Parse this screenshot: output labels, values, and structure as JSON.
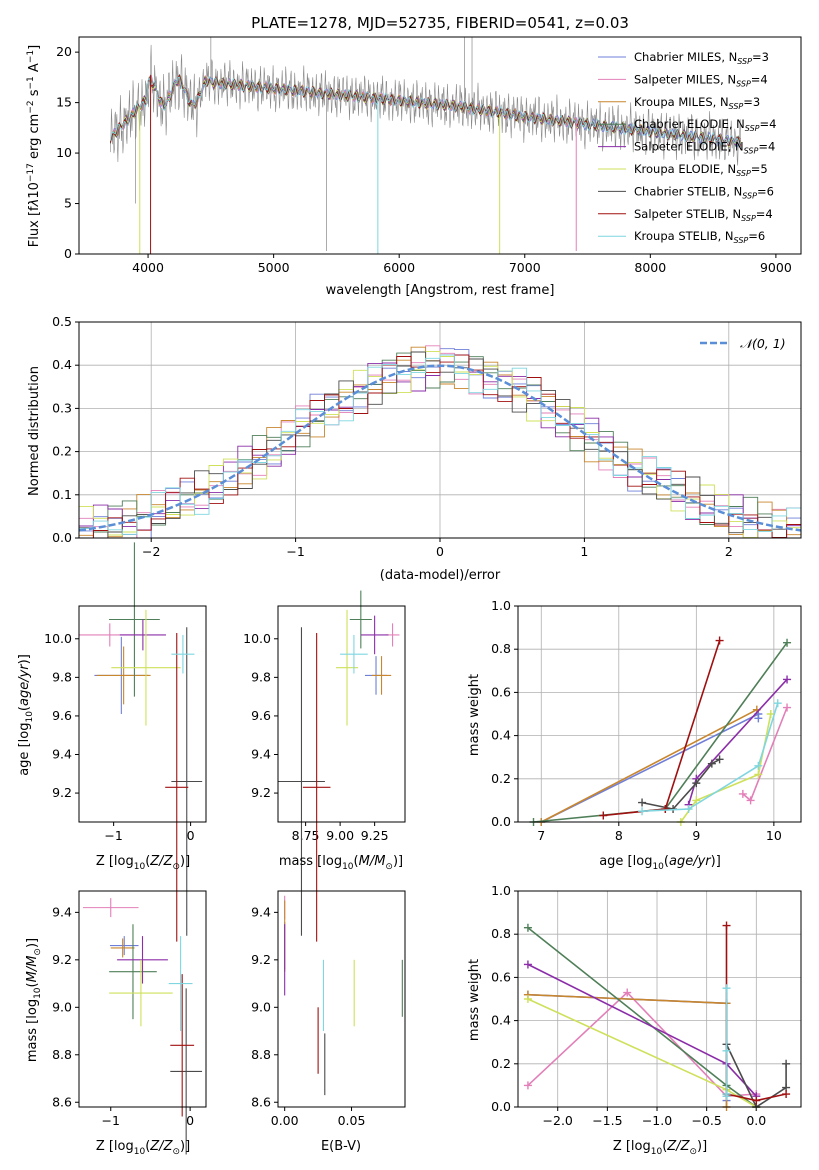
{
  "colors": {
    "Chabrier MILES": "#6f7fd8",
    "Salpeter MILES": "#e27fb8",
    "Kroupa MILES": "#c8862e",
    "Chabrier ELODIE": "#4f7f58",
    "Salpeter ELODIE": "#8b2ea8",
    "Kroupa ELODIE": "#cfe05a",
    "Chabrier STELIB": "#4b4b4b",
    "Salpeter STELIB": "#a01010",
    "Kroupa STELIB": "#7fd6e0",
    "gauss": "#5a8fd8",
    "data": "#888888"
  },
  "chart_data": [
    {
      "type": "line",
      "title": "PLATE=1278, MJD=52735, FIBERID=0541, z=0.03",
      "xlabel": "wavelength [Angstrom, rest frame]",
      "ylabel": "Flux [fλ10⁻¹⁷ erg cm⁻² s⁻¹ A⁻¹]",
      "xlim": [
        3450,
        9200
      ],
      "ylim": [
        0,
        21.5
      ],
      "xticks": [
        "4000",
        "5000",
        "6000",
        "7000",
        "8000",
        "9000"
      ],
      "yticks": [
        "0",
        "5",
        "10",
        "15",
        "20"
      ],
      "legend": [
        "Chabrier MILES, N_SSP=3",
        "Salpeter MILES, N_SSP=4",
        "Kroupa MILES, N_SSP=3",
        "Chabrier ELODIE, N_SSP=4",
        "Salpeter ELODIE, N_SSP=4",
        "Kroupa ELODIE, N_SSP=5",
        "Chabrier STELIB, N_SSP=6",
        "Salpeter STELIB, N_SSP=4",
        "Kroupa STELIB, N_SSP=6"
      ],
      "legend_loc": "upper right",
      "grid": false
    },
    {
      "type": "line",
      "xlabel": "(data-model)/error",
      "ylabel": "Normed distribution",
      "xlim": [
        -2.5,
        2.5
      ],
      "ylim": [
        0,
        0.5
      ],
      "xticks": [
        "−2",
        "−1",
        "0",
        "1",
        "2"
      ],
      "yticks": [
        "0.0",
        "0.1",
        "0.2",
        "0.3",
        "0.4",
        "0.5"
      ],
      "legend": [
        "𝒩(0, 1)"
      ],
      "grid": true
    },
    {
      "type": "scatter",
      "xlabel": "Z [log₁₀(Z/Z⊙)]",
      "ylabel": "age  [log₁₀(age/yr)]",
      "xlim": [
        -1.45,
        0.2
      ],
      "ylim": [
        9.05,
        10.17
      ],
      "xticks": [
        "−1",
        "0"
      ],
      "yticks": [
        "9.2",
        "9.4",
        "9.6",
        "9.8",
        "10.0"
      ],
      "points": [
        {
          "model": "Chabrier MILES",
          "x": -0.9,
          "y": 9.81,
          "xerr": 0.35,
          "yerr": 0.2
        },
        {
          "model": "Salpeter MILES",
          "x": -1.05,
          "y": 10.02,
          "xerr": 0.4,
          "yerr": 0.06
        },
        {
          "model": "Kroupa MILES",
          "x": -0.87,
          "y": 9.81,
          "xerr": 0.35,
          "yerr": 0.15
        },
        {
          "model": "Chabrier ELODIE",
          "x": -0.73,
          "y": 10.1,
          "xerr": 0.33,
          "yerr": 0.4
        },
        {
          "model": "Salpeter ELODIE",
          "x": -0.62,
          "y": 10.02,
          "xerr": 0.3,
          "yerr": 0.08
        },
        {
          "model": "Kroupa ELODIE",
          "x": -0.58,
          "y": 9.85,
          "xerr": 0.45,
          "yerr": 0.3
        },
        {
          "model": "Chabrier STELIB",
          "x": -0.05,
          "y": 9.26,
          "xerr": 0.2,
          "yerr": 0.8
        },
        {
          "model": "Salpeter STELIB",
          "x": -0.18,
          "y": 9.23,
          "xerr": 0.15,
          "yerr": 0.8
        },
        {
          "model": "Kroupa STELIB",
          "x": -0.1,
          "y": 9.92,
          "xerr": 0.15,
          "yerr": 0.1
        }
      ]
    },
    {
      "type": "scatter",
      "xlabel": "mass [log₁₀(M/M⊙)]",
      "ylabel": "",
      "xlim": [
        8.55,
        9.47
      ],
      "ylim": [
        9.05,
        10.17
      ],
      "xticks": [
        "8.75",
        "9.00",
        "9.25"
      ],
      "yticks": [
        "9.2",
        "9.4",
        "9.6",
        "9.8",
        "10.0"
      ],
      "points": [
        {
          "model": "Chabrier MILES",
          "x": 9.26,
          "y": 9.81,
          "xerr": 0.08,
          "yerr": 0.1
        },
        {
          "model": "Salpeter MILES",
          "x": 9.38,
          "y": 10.02,
          "xerr": 0.05,
          "yerr": 0.06
        },
        {
          "model": "Kroupa MILES",
          "x": 9.3,
          "y": 9.81,
          "xerr": 0.07,
          "yerr": 0.1
        },
        {
          "model": "Chabrier ELODIE",
          "x": 9.15,
          "y": 10.1,
          "xerr": 0.08,
          "yerr": 0.15
        },
        {
          "model": "Salpeter ELODIE",
          "x": 9.25,
          "y": 10.02,
          "xerr": 0.1,
          "yerr": 0.1
        },
        {
          "model": "Kroupa ELODIE",
          "x": 9.05,
          "y": 9.85,
          "xerr": 0.08,
          "yerr": 0.3
        },
        {
          "model": "Chabrier STELIB",
          "x": 8.72,
          "y": 9.26,
          "xerr": 0.17,
          "yerr": 0.8
        },
        {
          "model": "Salpeter STELIB",
          "x": 8.83,
          "y": 9.23,
          "xerr": 0.1,
          "yerr": 0.8
        },
        {
          "model": "Kroupa STELIB",
          "x": 9.1,
          "y": 9.92,
          "xerr": 0.1,
          "yerr": 0.1
        }
      ]
    },
    {
      "type": "line",
      "xlabel": "age  [log₁₀(age/yr)]",
      "ylabel": "mass weight",
      "xlim": [
        6.7,
        10.35
      ],
      "ylim": [
        0,
        1.0
      ],
      "xticks": [
        "7",
        "8",
        "9",
        "10"
      ],
      "yticks": [
        "0.0",
        "0.2",
        "0.4",
        "0.6",
        "0.8",
        "1.0"
      ],
      "grid": true,
      "series": [
        {
          "model": "Chabrier MILES",
          "x": [
            7.0,
            9.8,
            9.8
          ],
          "y": [
            0.0,
            0.5,
            0.48
          ]
        },
        {
          "model": "Salpeter MILES",
          "x": [
            9.6,
            9.7,
            10.17
          ],
          "y": [
            0.13,
            0.1,
            0.53
          ]
        },
        {
          "model": "Kroupa MILES",
          "x": [
            7.0,
            9.78
          ],
          "y": [
            0.0,
            0.52
          ]
        },
        {
          "model": "Chabrier ELODIE",
          "x": [
            6.9,
            8.6,
            10.17
          ],
          "y": [
            0.0,
            0.06,
            0.83
          ]
        },
        {
          "model": "Salpeter ELODIE",
          "x": [
            8.9,
            9.0,
            10.17
          ],
          "y": [
            0.08,
            0.2,
            0.66
          ]
        },
        {
          "model": "Kroupa ELODIE",
          "x": [
            8.8,
            9.0,
            9.8,
            9.96
          ],
          "y": [
            0.0,
            0.1,
            0.22,
            0.5
          ]
        },
        {
          "model": "Chabrier STELIB",
          "x": [
            8.3,
            8.7,
            9.0,
            9.2,
            9.3
          ],
          "y": [
            0.09,
            0.06,
            0.18,
            0.27,
            0.29
          ]
        },
        {
          "model": "Salpeter STELIB",
          "x": [
            7.8,
            8.6,
            9.3
          ],
          "y": [
            0.03,
            0.06,
            0.84
          ]
        },
        {
          "model": "Kroupa STELIB",
          "x": [
            8.3,
            8.9,
            9.8,
            10.05
          ],
          "y": [
            0.05,
            0.06,
            0.26,
            0.55
          ]
        }
      ]
    },
    {
      "type": "scatter",
      "xlabel": "Z [log₁₀(Z/Z⊙)]",
      "ylabel": "mass [log₁₀(M/M⊙)]",
      "xlim": [
        -1.4,
        0.2
      ],
      "ylim": [
        8.58,
        9.49
      ],
      "xticks": [
        "−1",
        "0"
      ],
      "yticks": [
        "8.6",
        "8.8",
        "9.0",
        "9.2",
        "9.4"
      ],
      "points": [
        {
          "model": "Chabrier MILES",
          "x": -0.83,
          "y": 9.26,
          "xerr": 0.18,
          "yerr": 0.04
        },
        {
          "model": "Salpeter MILES",
          "x": -1.0,
          "y": 9.42,
          "xerr": 0.35,
          "yerr": 0.04
        },
        {
          "model": "Kroupa MILES",
          "x": -0.85,
          "y": 9.25,
          "xerr": 0.15,
          "yerr": 0.04
        },
        {
          "model": "Chabrier ELODIE",
          "x": -0.72,
          "y": 9.15,
          "xerr": 0.3,
          "yerr": 0.2
        },
        {
          "model": "Salpeter ELODIE",
          "x": -0.6,
          "y": 9.2,
          "xerr": 0.32,
          "yerr": 0.1
        },
        {
          "model": "Kroupa ELODIE",
          "x": -0.62,
          "y": 9.06,
          "xerr": 0.4,
          "yerr": 0.14
        },
        {
          "model": "Chabrier STELIB",
          "x": -0.05,
          "y": 8.73,
          "xerr": 0.2,
          "yerr": 0.35
        },
        {
          "model": "Salpeter STELIB",
          "x": -0.1,
          "y": 8.84,
          "xerr": 0.15,
          "yerr": 0.3
        },
        {
          "model": "Kroupa STELIB",
          "x": -0.12,
          "y": 9.1,
          "xerr": 0.15,
          "yerr": 0.2
        }
      ]
    },
    {
      "type": "scatter",
      "xlabel": "E(B-V)",
      "ylabel": "",
      "xlim": [
        -0.005,
        0.09
      ],
      "ylim": [
        8.58,
        9.49
      ],
      "xticks": [
        "0.00",
        "0.05"
      ],
      "yticks": [
        "8.6",
        "8.8",
        "9.0",
        "9.2",
        "9.4"
      ],
      "points": [
        {
          "model": "Chabrier MILES",
          "x": 0.0,
          "y": 9.26,
          "xerr": 0.0,
          "yerr": 0.1
        },
        {
          "model": "Salpeter MILES",
          "x": 0.0,
          "y": 9.42,
          "xerr": 0.0,
          "yerr": 0.05
        },
        {
          "model": "Kroupa MILES",
          "x": 0.0,
          "y": 9.3,
          "xerr": 0.0,
          "yerr": 0.15
        },
        {
          "model": "Chabrier ELODIE",
          "x": 0.088,
          "y": 9.08,
          "xerr": 0.0,
          "yerr": 0.12
        },
        {
          "model": "Salpeter ELODIE",
          "x": 0.0,
          "y": 9.2,
          "xerr": 0.0,
          "yerr": 0.15
        },
        {
          "model": "Kroupa ELODIE",
          "x": 0.052,
          "y": 9.06,
          "xerr": 0.0,
          "yerr": 0.14
        },
        {
          "model": "Chabrier STELIB",
          "x": 0.03,
          "y": 8.76,
          "xerr": 0.0,
          "yerr": 0.13
        },
        {
          "model": "Salpeter STELIB",
          "x": 0.025,
          "y": 8.86,
          "xerr": 0.0,
          "yerr": 0.14
        },
        {
          "model": "Kroupa STELIB",
          "x": 0.029,
          "y": 9.05,
          "xerr": 0.0,
          "yerr": 0.15
        }
      ]
    },
    {
      "type": "line",
      "xlabel": "Z [log₁₀(Z/Z⊙)]",
      "ylabel": "mass weight",
      "xlim": [
        -2.4,
        0.45
      ],
      "ylim": [
        0,
        1.0
      ],
      "xticks": [
        "−2.0",
        "−1.5",
        "−1.0",
        "−0.5",
        "0.0"
      ],
      "yticks": [
        "0.0",
        "0.2",
        "0.4",
        "0.6",
        "0.8",
        "1.0"
      ],
      "grid": true,
      "series": [
        {
          "model": "Chabrier MILES",
          "x": [
            -2.3,
            -0.3,
            -0.3
          ],
          "y": [
            0.52,
            0.48,
            0.03
          ]
        },
        {
          "model": "Salpeter MILES",
          "x": [
            -2.3,
            -1.3,
            -0.3,
            0.0
          ],
          "y": [
            0.1,
            0.53,
            0.05,
            0.06
          ]
        },
        {
          "model": "Kroupa MILES",
          "x": [
            -2.3,
            -0.3,
            -0.3
          ],
          "y": [
            0.52,
            0.48,
            0.0
          ]
        },
        {
          "model": "Chabrier ELODIE",
          "x": [
            -2.3,
            -0.3,
            0.0
          ],
          "y": [
            0.83,
            0.1,
            0.0
          ]
        },
        {
          "model": "Salpeter ELODIE",
          "x": [
            -2.3,
            -0.3,
            0.0
          ],
          "y": [
            0.66,
            0.2,
            0.05
          ]
        },
        {
          "model": "Kroupa ELODIE",
          "x": [
            -2.3,
            -0.3,
            0.0
          ],
          "y": [
            0.5,
            0.08,
            0.0
          ]
        },
        {
          "model": "Chabrier STELIB",
          "x": [
            -0.3,
            0.0,
            0.3,
            0.3
          ],
          "y": [
            0.29,
            0.0,
            0.09,
            0.2
          ]
        },
        {
          "model": "Salpeter STELIB",
          "x": [
            -0.3,
            -0.3,
            0.0,
            0.3
          ],
          "y": [
            0.84,
            0.06,
            0.03,
            0.06
          ]
        },
        {
          "model": "Kroupa STELIB",
          "x": [
            -0.3,
            -0.3,
            -0.3,
            -0.3
          ],
          "y": [
            0.55,
            0.26,
            0.06,
            0.05
          ]
        }
      ]
    }
  ]
}
